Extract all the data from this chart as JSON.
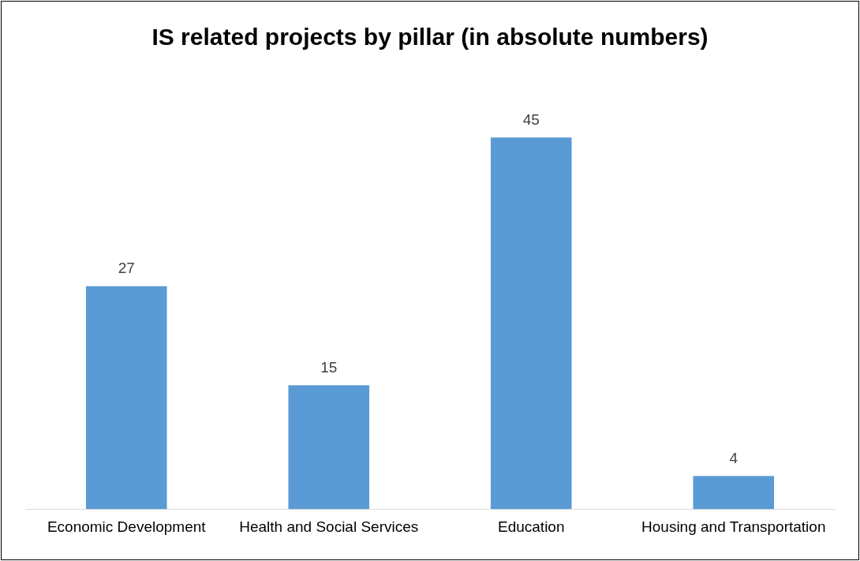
{
  "chart_data": {
    "type": "bar",
    "title": "IS related projects by pillar (in absolute numbers)",
    "categories": [
      "Economic Development",
      "Health and Social Services",
      "Education",
      "Housing and Transportation"
    ],
    "values": [
      27,
      15,
      45,
      4
    ],
    "color": "#5b9bd5",
    "data_labels": true,
    "grid": false,
    "legend": false
  }
}
